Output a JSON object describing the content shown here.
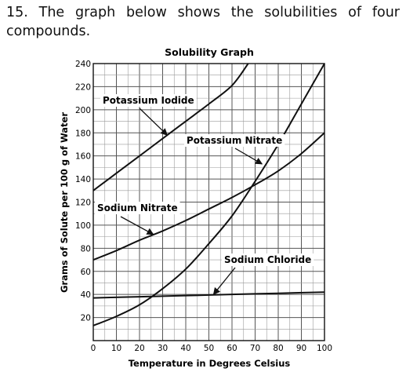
{
  "question": {
    "number": "15.",
    "text": "The graph below shows the solubilities of four compounds."
  },
  "chart_data": {
    "type": "line",
    "title": "Solubility Graph",
    "xlabel": "Temperature in Degrees Celsius",
    "ylabel": "Grams of Solute per 100 g of Water",
    "xlim": [
      0,
      100
    ],
    "ylim": [
      0,
      240
    ],
    "x_ticks": [
      0,
      10,
      20,
      30,
      40,
      50,
      60,
      70,
      80,
      90,
      100
    ],
    "x_tick_labels": [
      "0",
      "10",
      "20",
      "30",
      "40",
      "50",
      "60",
      "70",
      "80",
      "90",
      "100"
    ],
    "y_ticks": [
      20,
      40,
      60,
      80,
      100,
      120,
      140,
      160,
      180,
      200,
      220,
      240
    ],
    "y_tick_labels": [
      "20",
      "40",
      "60",
      "80",
      "100",
      "120",
      "140",
      "160",
      "180",
      "200",
      "220",
      "240"
    ],
    "grid": true,
    "line_color": "#111111",
    "series": [
      {
        "key": "potassium-iodide",
        "name": "Potassium Iodide",
        "x": [
          0,
          10,
          20,
          30,
          40,
          50,
          60,
          67
        ],
        "y": [
          130,
          145,
          160,
          175,
          190,
          205,
          221,
          240
        ]
      },
      {
        "key": "potassium-nitrate",
        "name": "Potassium Nitrate",
        "x": [
          0,
          10,
          20,
          30,
          40,
          50,
          60,
          70,
          80,
          90,
          100
        ],
        "y": [
          13,
          21,
          31,
          45,
          62,
          84,
          108,
          138,
          170,
          205,
          240
        ]
      },
      {
        "key": "sodium-nitrate",
        "name": "Sodium Nitrate",
        "x": [
          0,
          10,
          20,
          30,
          40,
          50,
          60,
          70,
          80,
          90,
          100
        ],
        "y": [
          70,
          78,
          87,
          95,
          104,
          114,
          124,
          135,
          147,
          162,
          180
        ]
      },
      {
        "key": "sodium-chloride",
        "name": "Sodium Chloride",
        "x": [
          0,
          20,
          40,
          60,
          80,
          100
        ],
        "y": [
          37,
          38,
          39,
          40,
          41,
          42
        ]
      }
    ],
    "annotations": [
      {
        "series": "potassium-iodide",
        "text": "Potassium Iodide",
        "at_x": 32,
        "at_y": 178
      },
      {
        "series": "potassium-nitrate",
        "text": "Potassium Nitrate",
        "at_x": 73,
        "at_y": 153
      },
      {
        "series": "sodium-nitrate",
        "text": "Sodium Nitrate",
        "at_x": 26,
        "at_y": 92
      },
      {
        "series": "sodium-chloride",
        "text": "Sodium Chloride",
        "at_x": 52,
        "at_y": 40
      }
    ]
  }
}
